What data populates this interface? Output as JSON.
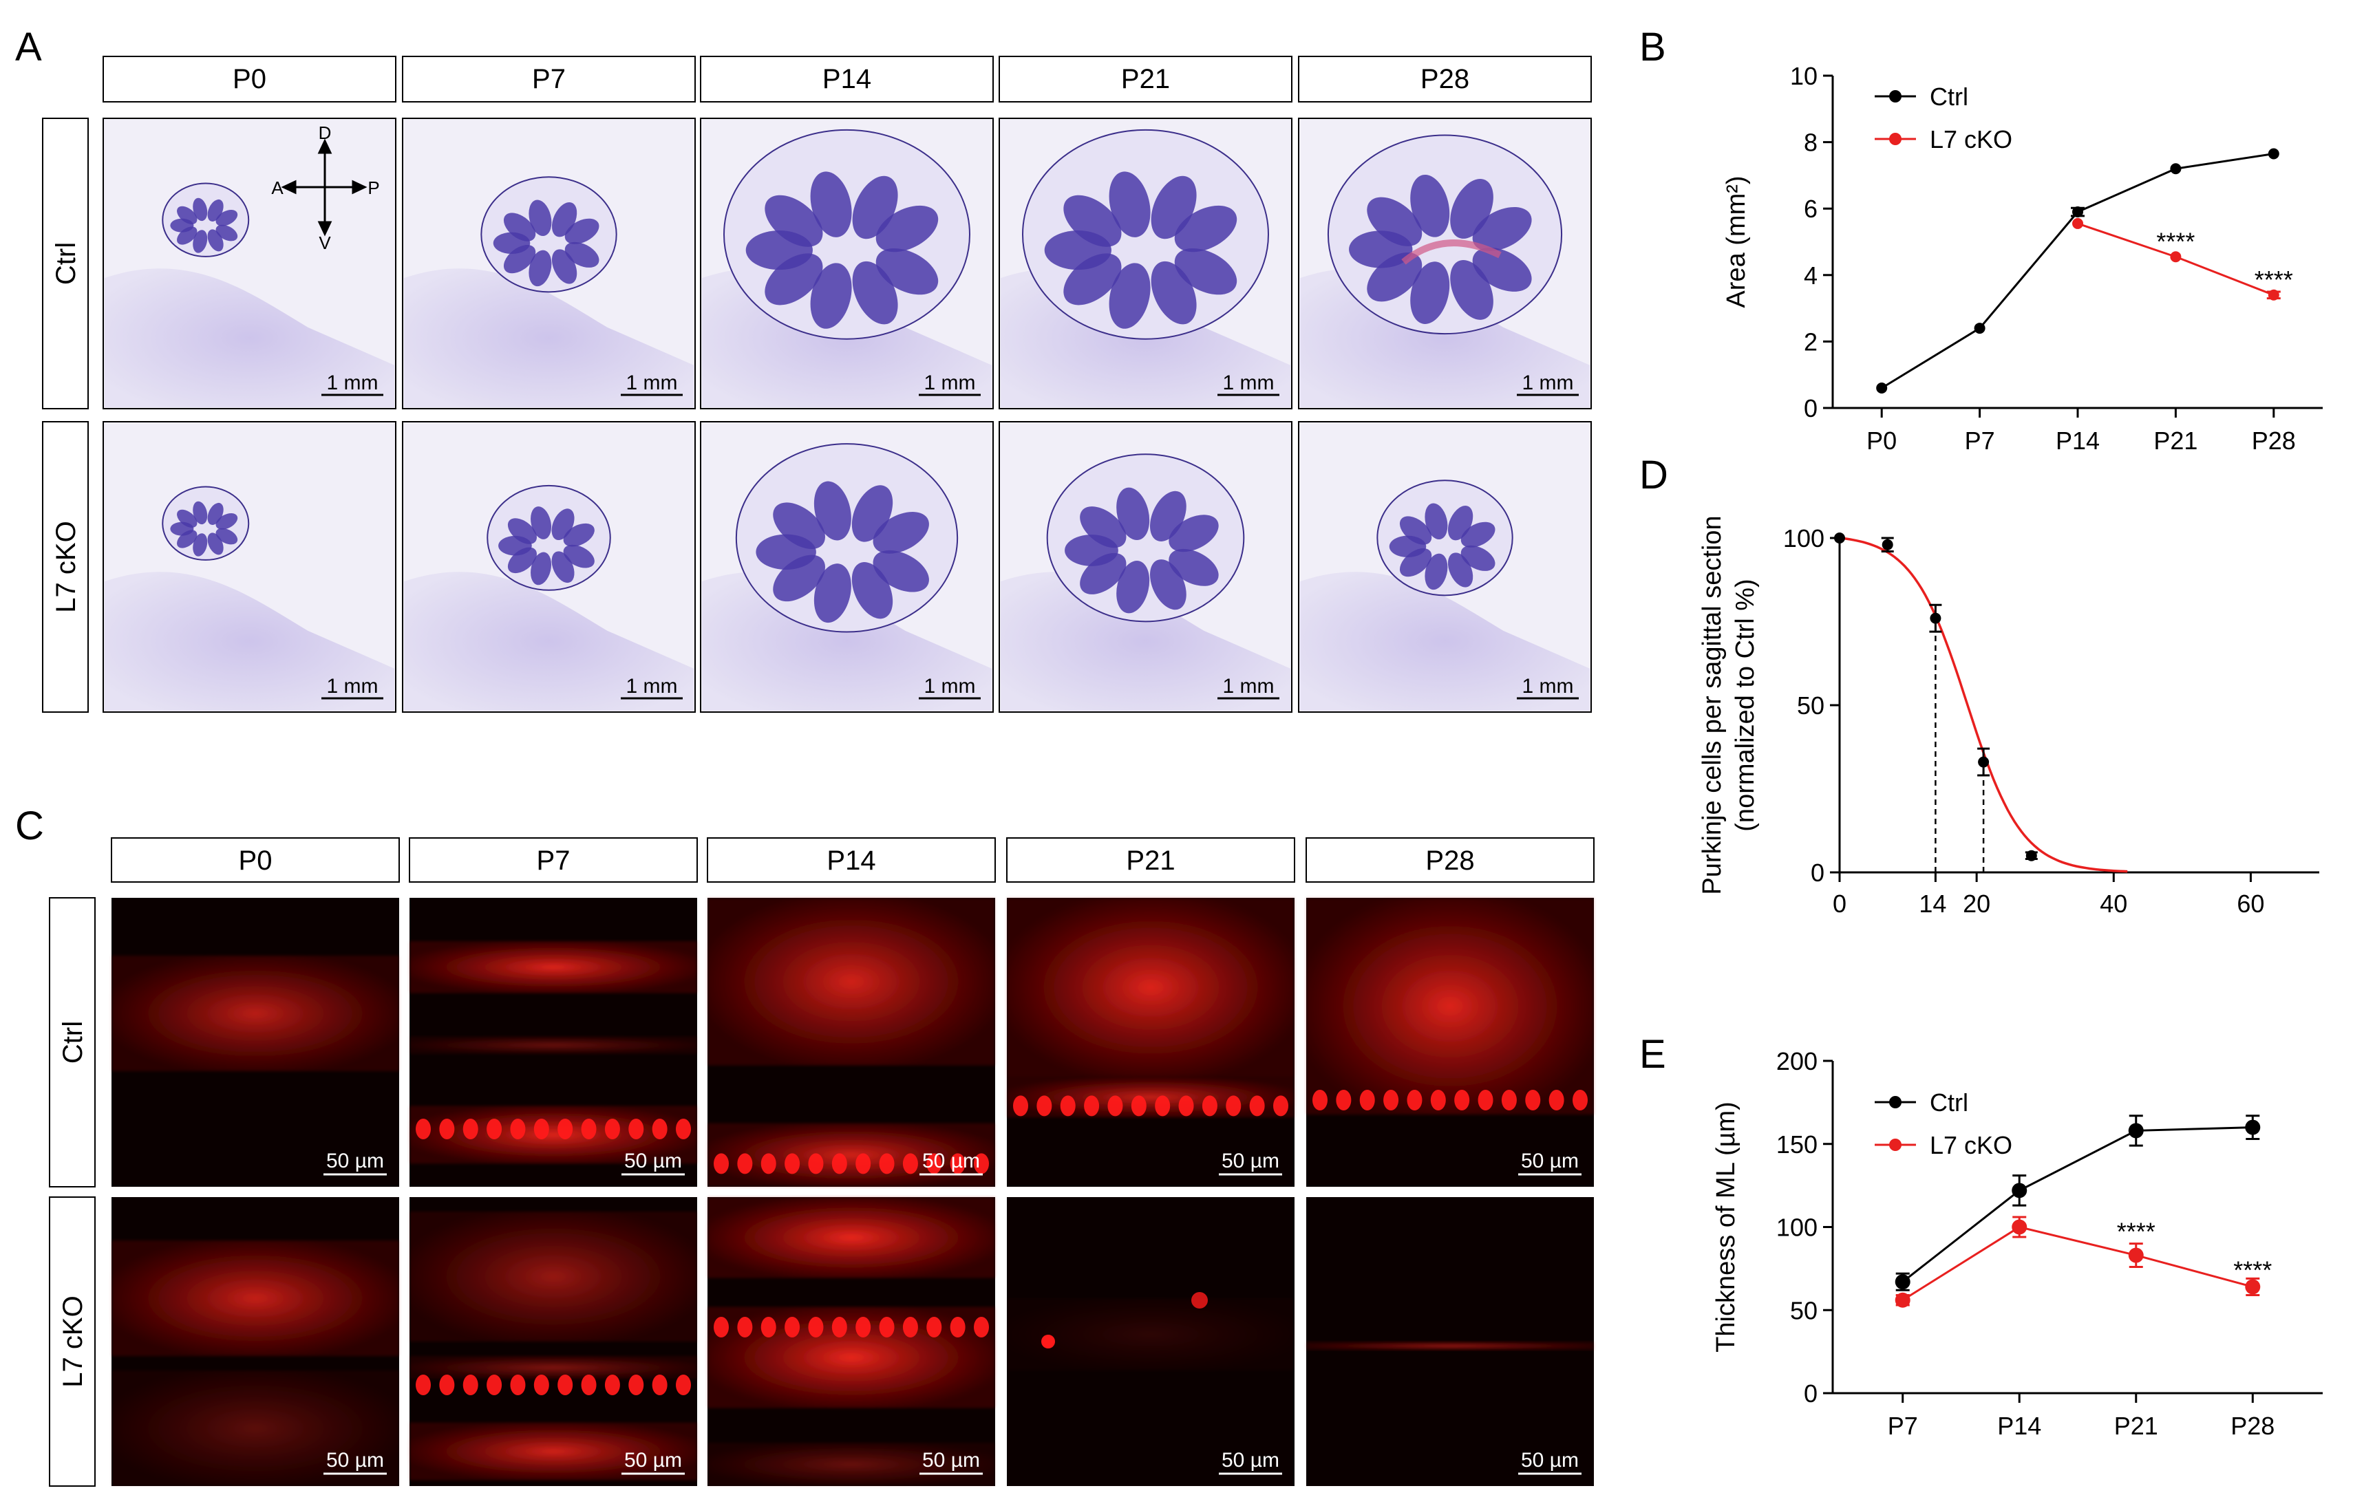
{
  "colors": {
    "ctrl": "#000000",
    "cko": "#e8201f",
    "nissl_bg": "#f1eff8",
    "nissl_tissue": "#cfc8ec",
    "nissl_folia": "#4a3aa8",
    "fluo_bg": "#0a0000",
    "fluo_red": "#ff1a1a"
  },
  "panel_a": {
    "letter": "A",
    "ages": [
      "P0",
      "P7",
      "P14",
      "P21",
      "P28"
    ],
    "rows": [
      "Ctrl",
      "L7 cKO"
    ],
    "scalebar": "1 mm",
    "orientation": {
      "d": "D",
      "v": "V",
      "a": "A",
      "p": "P"
    }
  },
  "panel_c": {
    "letter": "C",
    "ages": [
      "P0",
      "P7",
      "P14",
      "P21",
      "P28"
    ],
    "rows": [
      "Ctrl",
      "L7 cKO"
    ],
    "scalebar": "50 µm"
  },
  "chart_data": [
    {
      "id": "B",
      "letter": "B",
      "type": "line",
      "categories": [
        "P0",
        "P7",
        "P14",
        "P21",
        "P28"
      ],
      "series": [
        {
          "name": "Ctrl",
          "values": [
            0.6,
            2.4,
            5.9,
            7.2,
            7.65
          ],
          "errors": [
            0,
            0,
            0.12,
            0,
            0
          ]
        },
        {
          "name": "L7 cKO",
          "values": [
            null,
            null,
            5.55,
            4.55,
            3.4
          ],
          "errors": [
            0,
            0,
            0,
            0,
            0.1
          ]
        }
      ],
      "ylabel": "Area (mm²)",
      "ylim": [
        0,
        10
      ],
      "yticks": [
        0,
        2,
        4,
        6,
        8,
        10
      ],
      "annotations": [
        {
          "category": "P21",
          "y": 5.0,
          "text": "****"
        },
        {
          "category": "P28",
          "y": 3.85,
          "text": "****"
        }
      ],
      "legend": "top-left"
    },
    {
      "id": "D",
      "letter": "D",
      "type": "scatter",
      "xlim": [
        0,
        70
      ],
      "xticks": [
        0,
        20,
        40,
        60
      ],
      "extra_xticks": [
        14
      ],
      "ylim": [
        0,
        100
      ],
      "yticks": [
        0,
        50,
        100
      ],
      "ylabel": "Purkinje cells per sagittal section",
      "ylabel2": "(normalized to Ctrl %)",
      "points": [
        {
          "x": 0,
          "y": 100,
          "err": 0
        },
        {
          "x": 7,
          "y": 98,
          "err": 2
        },
        {
          "x": 14,
          "y": 76,
          "err": 4
        },
        {
          "x": 21,
          "y": 33,
          "err": 4
        },
        {
          "x": 28,
          "y": 5,
          "err": 1
        }
      ],
      "fit": {
        "model": "sigmoid",
        "midpoint": 18.6,
        "slope": 4.0,
        "top": 101,
        "color": "cko"
      },
      "reference_lines": [
        14,
        21
      ]
    },
    {
      "id": "E",
      "letter": "E",
      "type": "line",
      "categories": [
        "P7",
        "P14",
        "P21",
        "P28"
      ],
      "series": [
        {
          "name": "Ctrl",
          "values": [
            67,
            122,
            158,
            160
          ],
          "errors": [
            5,
            9,
            9,
            7
          ]
        },
        {
          "name": "L7 cKO",
          "values": [
            56,
            100,
            83,
            64
          ],
          "errors": [
            3,
            6,
            7,
            5
          ]
        }
      ],
      "ylabel": "Thickness of ML (µm)",
      "ylim": [
        0,
        200
      ],
      "yticks": [
        0,
        50,
        100,
        150,
        200
      ],
      "annotations": [
        {
          "category": "P21",
          "y": 97,
          "text": "****"
        },
        {
          "category": "P28",
          "y": 74,
          "text": "****"
        }
      ],
      "legend": "top-left"
    }
  ]
}
